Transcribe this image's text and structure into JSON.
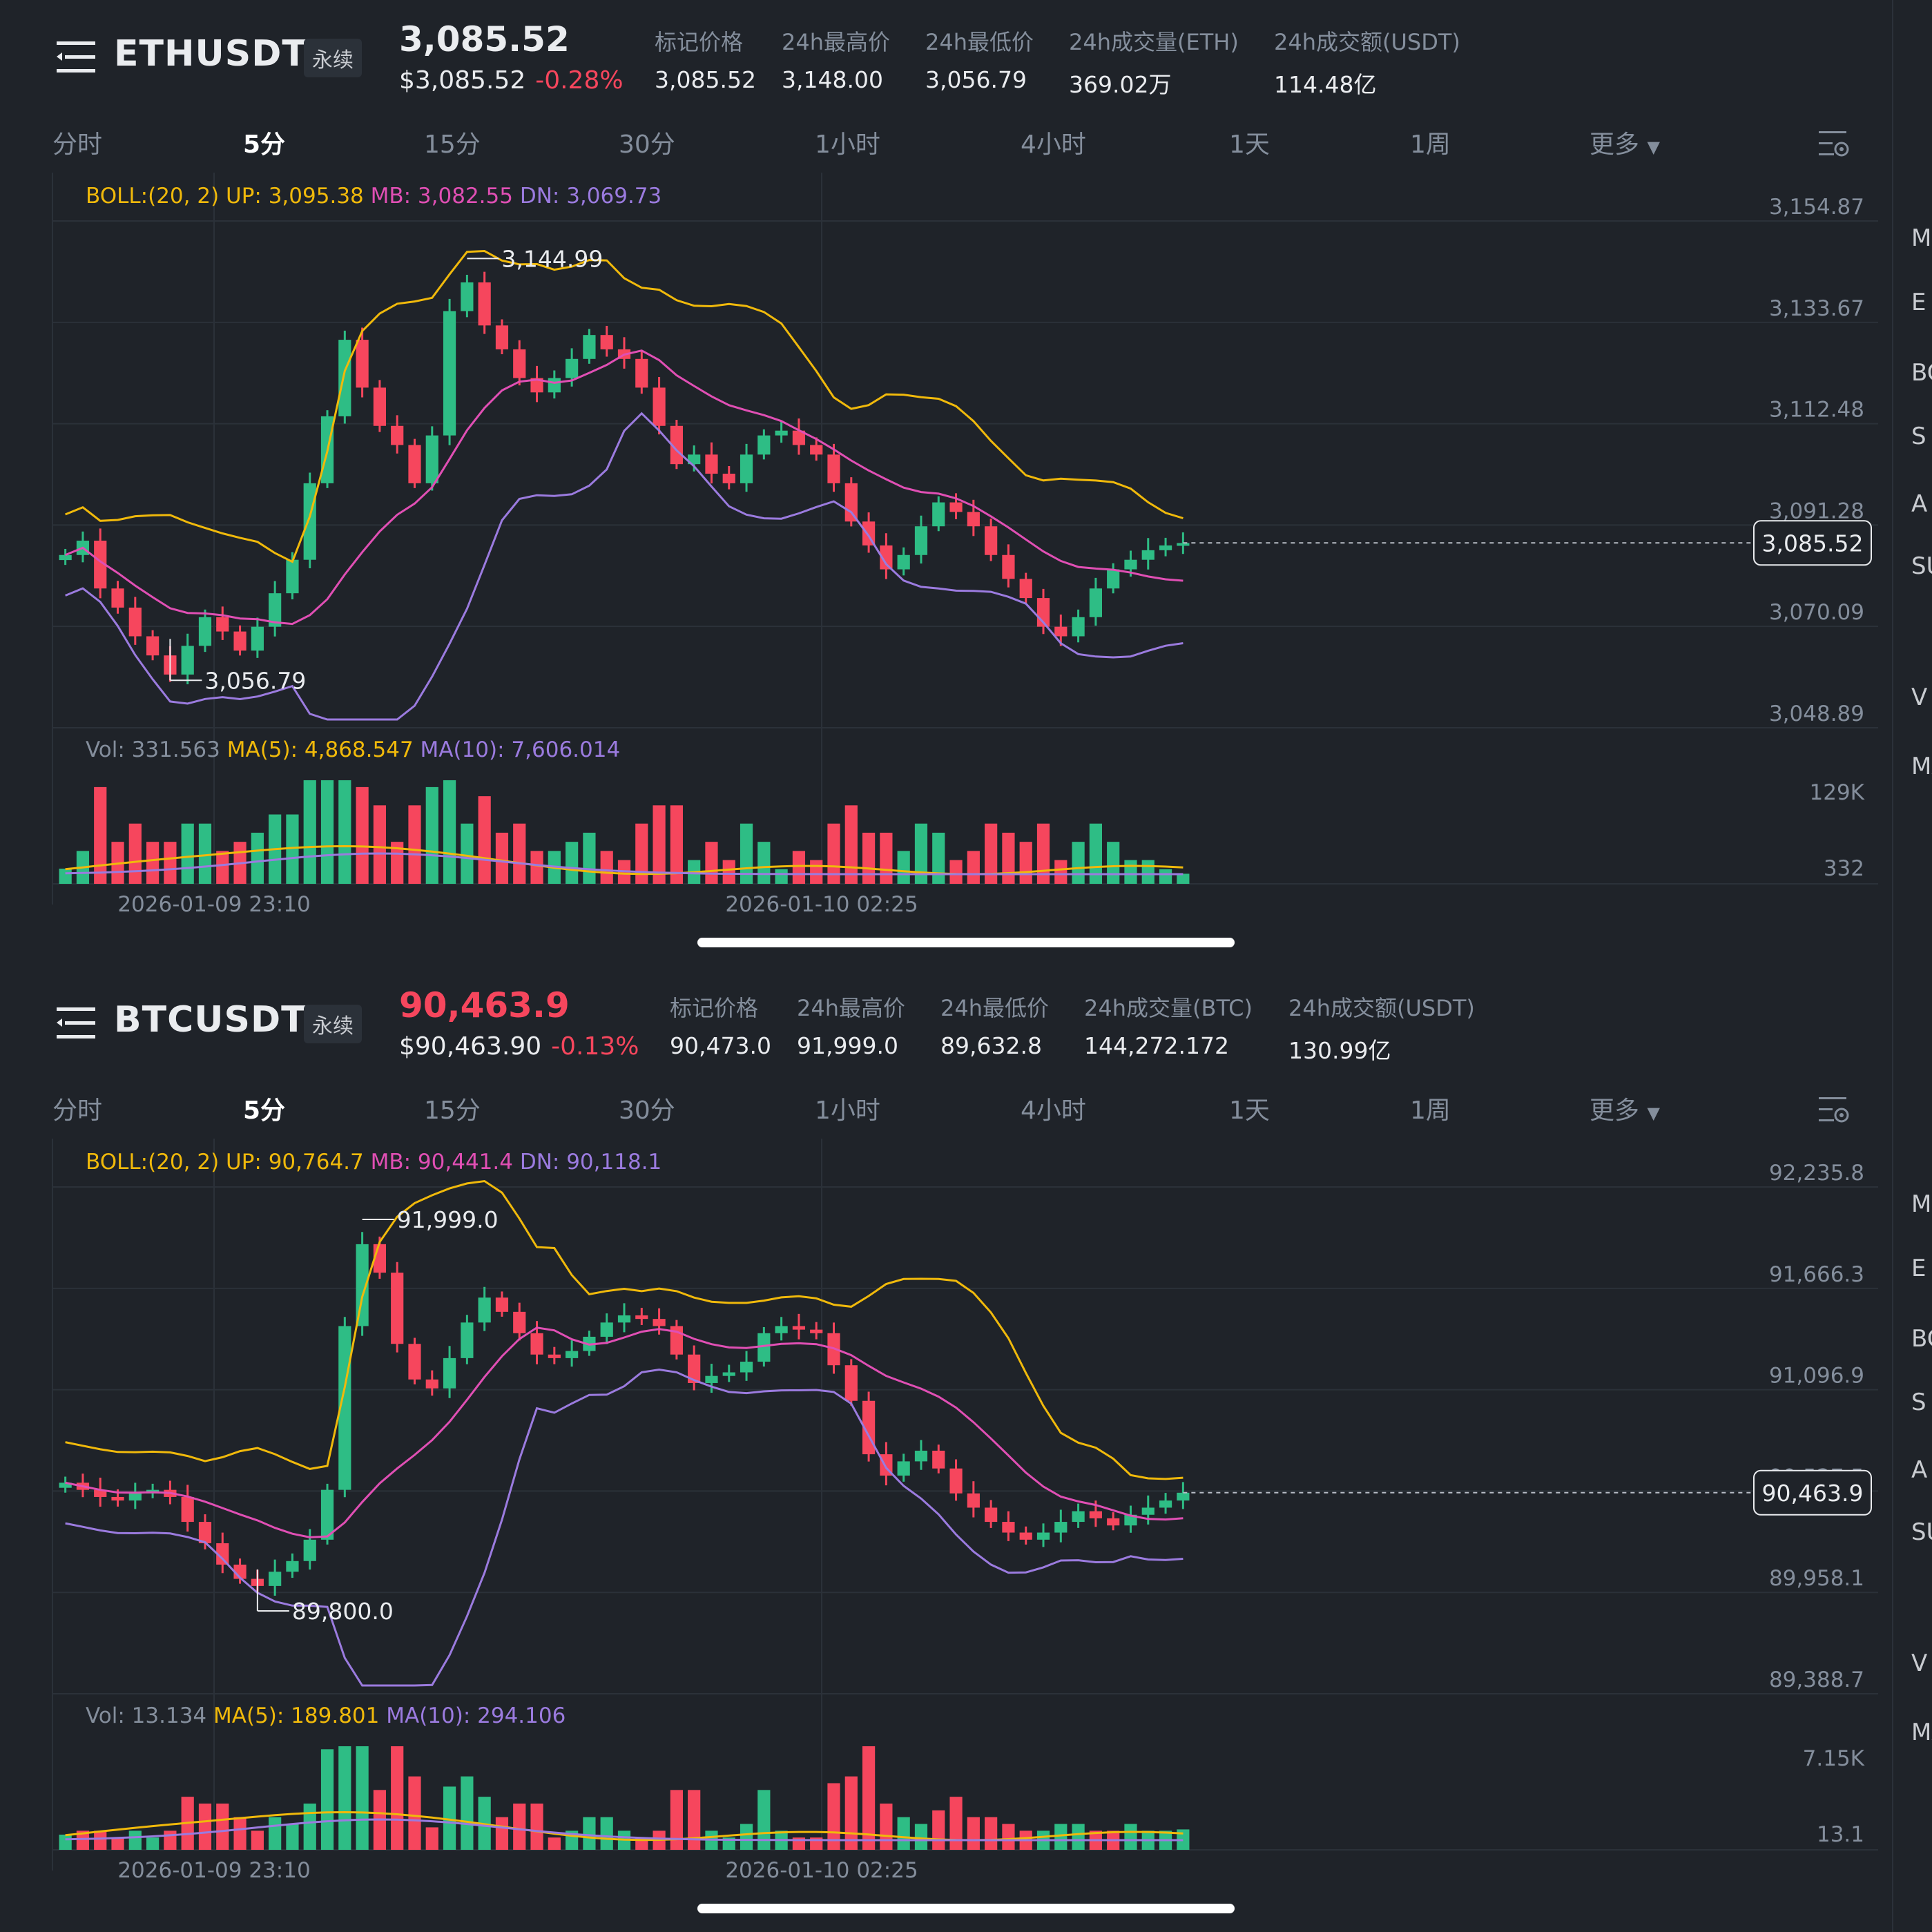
{
  "panels": [
    {
      "id": "eth",
      "symbol": "ETHUSDT",
      "badge": "永续",
      "price": "3,085.52",
      "price_color": "#eaecef",
      "price_usd": "$3,085.52",
      "change": "-0.28%",
      "stats": [
        {
          "label": "标记价格",
          "value": "3,085.52"
        },
        {
          "label": "24h最高价",
          "value": "3,148.00"
        },
        {
          "label": "24h最低价",
          "value": "3,056.79"
        },
        {
          "label": "24h成交量(ETH)",
          "value": "369.02万"
        },
        {
          "label": "24h成交额(USDT)",
          "value": "114.48亿"
        }
      ],
      "boll": {
        "label": "BOLL:(20, 2)",
        "up": "UP: 3,095.38",
        "mb": "MB: 3,082.55",
        "dn": "DN: 3,069.73"
      },
      "vol": {
        "label": "Vol: 331.563",
        "ma5": "MA(5): 4,868.547",
        "ma10": "MA(10): 7,606.014"
      },
      "price_ticks": [
        "3,154.87",
        "3,133.67",
        "3,112.48",
        "3,091.28",
        "3,070.09",
        "3,048.89"
      ],
      "vol_ticks": [
        "129K",
        "332"
      ],
      "current_price": "3,085.52",
      "high_label": "3,144.99",
      "low_label": "3,056.79",
      "time_labels": [
        "2026-01-09 23:10",
        "2026-01-10 02:25"
      ],
      "edge_letters": [
        "M",
        "E",
        "BO",
        "S",
        "A",
        "SU",
        "V",
        "MA"
      ]
    },
    {
      "id": "btc",
      "symbol": "BTCUSDT",
      "badge": "永续",
      "price": "90,463.9",
      "price_color": "#f6465d",
      "price_usd": "$90,463.90",
      "change": "-0.13%",
      "stats": [
        {
          "label": "标记价格",
          "value": "90,473.0"
        },
        {
          "label": "24h最高价",
          "value": "91,999.0"
        },
        {
          "label": "24h最低价",
          "value": "89,632.8"
        },
        {
          "label": "24h成交量(BTC)",
          "value": "144,272.172"
        },
        {
          "label": "24h成交额(USDT)",
          "value": "130.99亿"
        }
      ],
      "boll": {
        "label": "BOLL:(20, 2)",
        "up": "UP: 90,764.7",
        "mb": "MB: 90,441.4",
        "dn": "DN: 90,118.1"
      },
      "vol": {
        "label": "Vol: 13.134",
        "ma5": "MA(5): 189.801",
        "ma10": "MA(10): 294.106"
      },
      "price_ticks": [
        "92,235.8",
        "91,666.3",
        "91,096.9",
        "90,527.5",
        "89,958.1",
        "89,388.7"
      ],
      "vol_ticks": [
        "7.15K",
        "13.1"
      ],
      "current_price": "90,463.9",
      "high_label": "91,999.0",
      "low_label": "89,800.0",
      "time_labels": [
        "2026-01-09 23:10",
        "2026-01-10 02:25"
      ],
      "edge_letters": [
        "M",
        "E",
        "BO",
        "S",
        "A",
        "SU",
        "V",
        "MA"
      ]
    }
  ],
  "tabs": [
    "分时",
    "5分",
    "15分",
    "30分",
    "1小时",
    "4小时",
    "1天",
    "1周",
    "更多"
  ],
  "active_tab": "5分",
  "colors": {
    "up": "#2ebd85",
    "down": "#f6465d",
    "boll_up": "#f0b90b",
    "boll_mb": "#e04fb4",
    "boll_dn": "#9b7bdf",
    "bg": "#1f2329",
    "grid": "#2b3139"
  },
  "chart_data": [
    {
      "type": "candlestick",
      "symbol": "ETHUSDT",
      "interval": "5分",
      "ylim": [
        3048.89,
        3154.87
      ],
      "y_ticks": [
        3154.87,
        3133.67,
        3112.48,
        3091.28,
        3070.09,
        3048.89
      ],
      "x_ticks": [
        "2026-01-09 23:10",
        "2026-01-10 02:25"
      ],
      "high": 3144.99,
      "low": 3056.79,
      "last": 3085.52,
      "close_series": [
        3083,
        3086,
        3076,
        3072,
        3066,
        3062,
        3058,
        3064,
        3070,
        3067,
        3063,
        3068,
        3075,
        3082,
        3098,
        3112,
        3128,
        3118,
        3110,
        3106,
        3098,
        3108,
        3134,
        3140,
        3131,
        3126,
        3120,
        3117,
        3120,
        3124,
        3129,
        3126,
        3124,
        3118,
        3110,
        3102,
        3104,
        3100,
        3098,
        3104,
        3108,
        3109,
        3106,
        3104,
        3098,
        3090,
        3085,
        3080,
        3083,
        3089,
        3094,
        3092,
        3089,
        3083,
        3078,
        3074,
        3068,
        3066,
        3070,
        3076,
        3080,
        3082,
        3084,
        3085,
        3085.5
      ],
      "boll": {
        "UP": 3095.38,
        "MB": 3082.55,
        "DN": 3069.73
      },
      "volume": {
        "last": 331.563,
        "MA5": 4868.547,
        "MA10": 7606.014,
        "ymax_label": "129K"
      }
    },
    {
      "type": "candlestick",
      "symbol": "BTCUSDT",
      "interval": "5分",
      "ylim": [
        89388.7,
        92235.8
      ],
      "y_ticks": [
        92235.8,
        91666.3,
        91096.9,
        90527.5,
        89958.1,
        89388.7
      ],
      "x_ticks": [
        "2026-01-09 23:10",
        "2026-01-10 02:25"
      ],
      "high": 91999.0,
      "low": 89800.0,
      "last": 90463.9,
      "close_series": [
        90520,
        90480,
        90440,
        90420,
        90460,
        90480,
        90440,
        90300,
        90180,
        90060,
        89980,
        89940,
        90020,
        90080,
        90200,
        90480,
        91400,
        91860,
        91700,
        91300,
        91100,
        91050,
        91220,
        91420,
        91560,
        91480,
        91360,
        91240,
        91220,
        91260,
        91340,
        91420,
        91460,
        91440,
        91400,
        91240,
        91080,
        91120,
        91140,
        91200,
        91360,
        91400,
        91380,
        91360,
        91180,
        90980,
        90680,
        90560,
        90640,
        90700,
        90600,
        90460,
        90380,
        90300,
        90240,
        90200,
        90240,
        90300,
        90360,
        90320,
        90280,
        90340,
        90380,
        90420,
        90463.9
      ],
      "boll": {
        "UP": 90764.7,
        "MB": 90441.4,
        "DN": 90118.1
      },
      "volume": {
        "last": 13.134,
        "MA5": 189.801,
        "MA10": 294.106,
        "ymax_label": "7.15K"
      }
    }
  ]
}
